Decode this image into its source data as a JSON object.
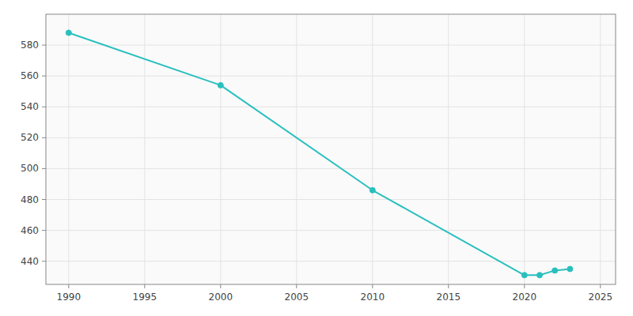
{
  "chart_data": {
    "type": "line",
    "x": [
      1990,
      2000,
      2010,
      2020,
      2021,
      2022,
      2023
    ],
    "values": [
      588,
      554,
      486,
      431,
      431,
      434,
      435
    ],
    "color": "#2abfbf",
    "marker": "circle",
    "xlim": [
      1988.5,
      2026
    ],
    "ylim": [
      425,
      600
    ],
    "xticks": [
      1990,
      1995,
      2000,
      2005,
      2010,
      2015,
      2020,
      2025
    ],
    "yticks": [
      440,
      460,
      480,
      500,
      520,
      540,
      560,
      580
    ],
    "grid": true
  }
}
